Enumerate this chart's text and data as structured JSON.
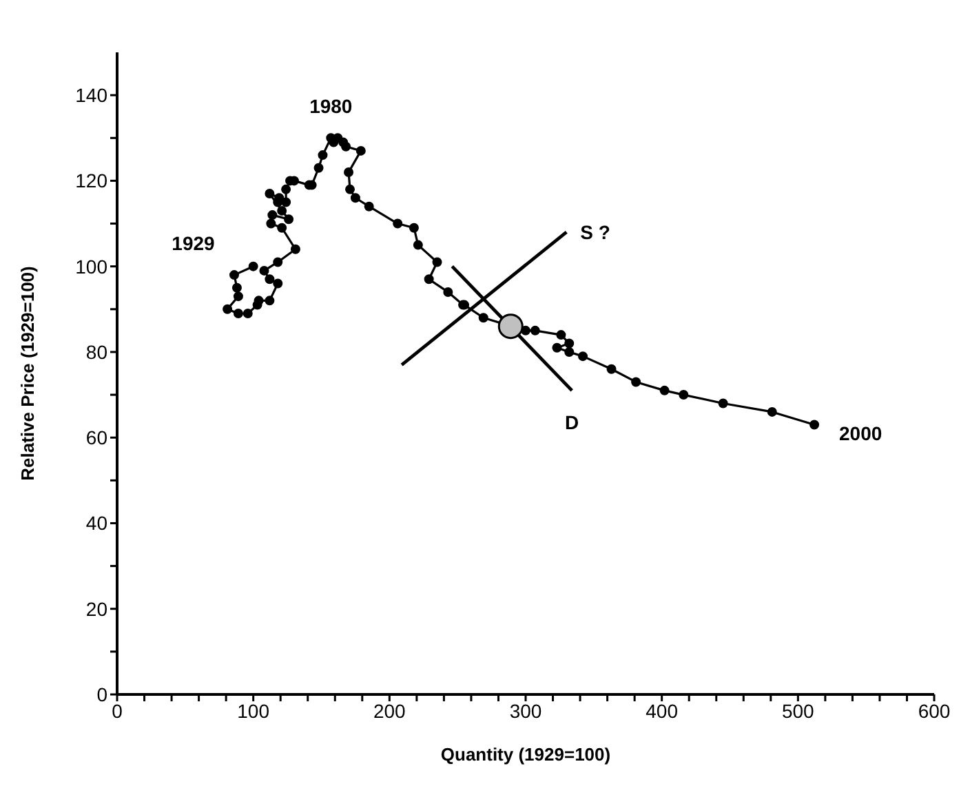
{
  "chart_data": {
    "type": "line",
    "xlabel": "Quantity (1929=100)",
    "ylabel": "Relative Price (1929=100)",
    "xlim": [
      0,
      600
    ],
    "ylim": [
      0,
      150
    ],
    "xticks": [
      0,
      {
        "value": 20,
        "label": null
      },
      {
        "value": 40,
        "label": null
      },
      {
        "value": 60,
        "label": null
      },
      {
        "value": 80,
        "label": null
      },
      100,
      {
        "value": 120,
        "label": null
      },
      {
        "value": 140,
        "label": null
      },
      {
        "value": 160,
        "label": null
      },
      {
        "value": 180,
        "label": null
      },
      200,
      {
        "value": 220,
        "label": null
      },
      {
        "value": 240,
        "label": null
      },
      {
        "value": 260,
        "label": null
      },
      {
        "value": 280,
        "label": null
      },
      300,
      {
        "value": 320,
        "label": null
      },
      {
        "value": 340,
        "label": null
      },
      {
        "value": 360,
        "label": null
      },
      {
        "value": 380,
        "label": null
      },
      400,
      {
        "value": 420,
        "label": null
      },
      {
        "value": 440,
        "label": null
      },
      {
        "value": 460,
        "label": null
      },
      {
        "value": 480,
        "label": null
      },
      500,
      {
        "value": 520,
        "label": null
      },
      {
        "value": 540,
        "label": null
      },
      {
        "value": 560,
        "label": null
      },
      {
        "value": 580,
        "label": null
      },
      600
    ],
    "yticks": [
      0,
      {
        "value": 10,
        "label": null
      },
      20,
      {
        "value": 30,
        "label": null
      },
      40,
      {
        "value": 50,
        "label": null
      },
      60,
      {
        "value": 70,
        "label": null
      },
      80,
      {
        "value": 90,
        "label": null
      },
      100,
      {
        "value": 110,
        "label": null
      },
      120,
      {
        "value": 130,
        "label": null
      },
      140
    ],
    "grid": false,
    "legend": false,
    "line_style": "solid",
    "series": [
      {
        "type": "line",
        "color": "#000000",
        "marker": "circle",
        "x": [
          100,
          86,
          88,
          89,
          81,
          89,
          96,
          103,
          104,
          112,
          118,
          112,
          108,
          118,
          131,
          121,
          113,
          114,
          126,
          121,
          112,
          119,
          118,
          124,
          124,
          127,
          130,
          141,
          143,
          148,
          151,
          157,
          159,
          162,
          166,
          168,
          179,
          170,
          171,
          175,
          185,
          206,
          218,
          221,
          235,
          229,
          243,
          254,
          255,
          269,
          300,
          307,
          326,
          332,
          323,
          332,
          342,
          363,
          381,
          402,
          416,
          445,
          481,
          512
        ],
        "values": [
          100,
          98,
          95,
          93,
          90,
          89,
          89,
          91,
          92,
          92,
          96,
          97,
          99,
          101,
          104,
          109,
          110,
          112,
          111,
          113,
          117,
          116,
          115,
          115,
          118,
          120,
          120,
          119,
          119,
          123,
          126,
          130,
          129,
          130,
          129,
          128,
          127,
          122,
          118,
          116,
          114,
          110,
          109,
          105,
          101,
          97,
          94,
          91,
          91,
          88,
          85,
          85,
          84,
          82,
          81,
          80,
          79,
          76,
          73,
          71,
          70,
          68,
          66,
          63
        ]
      },
      {
        "type": "line",
        "color": "#000000",
        "marker": "none",
        "x": [
          209,
          330
        ],
        "values": [
          77,
          108
        ]
      },
      {
        "type": "line",
        "color": "#000000",
        "marker": "none",
        "x": [
          246,
          334
        ],
        "values": [
          100,
          71
        ]
      },
      {
        "type": "scatter",
        "color": "#c0c0c0",
        "marker": "circle",
        "x": [
          289
        ],
        "values": [
          86
        ]
      }
    ],
    "annotations": [
      {
        "text": "1929",
        "x": 100,
        "y": 100
      },
      {
        "text": "1980",
        "x": 157,
        "y": 130
      },
      {
        "text": "2000",
        "x": 512,
        "y": 63
      },
      {
        "text": "S ?",
        "x": 330,
        "y": 108
      },
      {
        "text": "D",
        "x": 334,
        "y": 71
      }
    ]
  }
}
